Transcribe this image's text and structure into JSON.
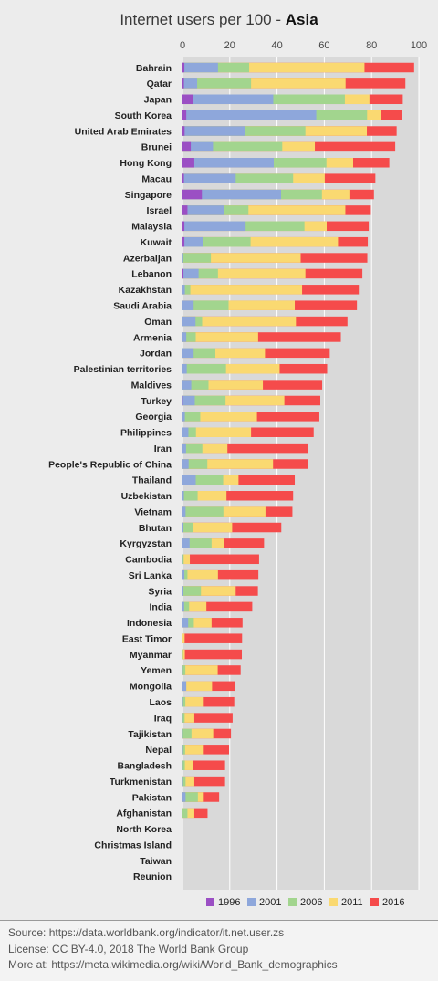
{
  "chart_data": {
    "type": "bar",
    "stacked_overlay": true,
    "title_prefix": "Internet users per 100 - ",
    "title_bold": "Asia",
    "xlim": [
      0,
      100
    ],
    "x_ticks": [
      0,
      20,
      40,
      60,
      80,
      100
    ],
    "grid": true,
    "legend_position": "bottom",
    "categories": [
      "Bahrain",
      "Qatar",
      "Japan",
      "South Korea",
      "United Arab Emirates",
      "Brunei",
      "Hong Kong",
      "Macau",
      "Singapore",
      "Israel",
      "Malaysia",
      "Kuwait",
      "Azerbaijan",
      "Lebanon",
      "Kazakhstan",
      "Saudi Arabia",
      "Oman",
      "Armenia",
      "Jordan",
      "Palestinian territories",
      "Maldives",
      "Turkey",
      "Georgia",
      "Philippines",
      "Iran",
      "People's Republic of China",
      "Thailand",
      "Uzbekistan",
      "Vietnam",
      "Bhutan",
      "Kyrgyzstan",
      "Cambodia",
      "Sri Lanka",
      "Syria",
      "India",
      "Indonesia",
      "East Timor",
      "Myanmar",
      "Yemen",
      "Mongolia",
      "Laos",
      "Iraq",
      "Tajikistan",
      "Nepal",
      "Bangladesh",
      "Turkmenistan",
      "Pakistan",
      "Afghanistan",
      "North Korea",
      "Christmas Island",
      "Taiwan",
      "Reunion"
    ],
    "series": [
      {
        "name": "1996",
        "color": "#9b4fc4",
        "values": [
          0.8,
          0.6,
          4.4,
          1.6,
          0.9,
          3.5,
          5.0,
          0.6,
          8.2,
          2.1,
          0.8,
          0.8,
          0.0,
          0.4,
          0.0,
          0.0,
          0.0,
          0.0,
          0.0,
          0.0,
          0.0,
          0.1,
          0.0,
          0.0,
          0.0,
          0.0,
          0.0,
          0.0,
          0.0,
          0.0,
          0.0,
          0.0,
          0.0,
          0.0,
          0.0,
          0.0,
          0.0,
          0.0,
          0.0,
          0.0,
          0.0,
          0.0,
          0.0,
          0.0,
          0.0,
          0.0,
          0.0,
          0.0,
          0.0,
          0.0,
          0.0,
          0.0
        ]
      },
      {
        "name": "2001",
        "color": "#8ea7db",
        "values": [
          15.0,
          6.2,
          38.4,
          56.6,
          26.3,
          12.9,
          38.6,
          22.5,
          41.7,
          17.6,
          26.7,
          8.5,
          0.3,
          6.8,
          1.0,
          4.7,
          5.5,
          1.6,
          4.7,
          1.8,
          3.7,
          5.2,
          1.0,
          2.5,
          1.5,
          2.6,
          5.6,
          0.6,
          1.3,
          0.4,
          3.0,
          0.1,
          0.8,
          0.4,
          0.7,
          2.4,
          0.0,
          0.0,
          0.1,
          1.6,
          0.2,
          0.1,
          0.1,
          0.2,
          0.1,
          0.2,
          1.3,
          0.0,
          0.0,
          0.0,
          0.0,
          0.0
        ]
      },
      {
        "name": "2006",
        "color": "#a2d58e",
        "values": [
          28.2,
          29.0,
          68.7,
          78.1,
          52.0,
          42.2,
          60.9,
          46.8,
          59.0,
          27.9,
          51.6,
          28.8,
          12.0,
          15.0,
          3.3,
          19.5,
          8.3,
          5.6,
          13.9,
          18.4,
          11.0,
          18.2,
          7.5,
          5.7,
          8.4,
          10.5,
          17.2,
          6.4,
          17.3,
          4.5,
          12.3,
          0.5,
          2.1,
          7.8,
          2.8,
          4.8,
          0.0,
          0.2,
          1.2,
          1.1,
          1.2,
          0.9,
          3.8,
          1.1,
          1.0,
          1.3,
          6.5,
          2.1,
          0.0,
          0.0,
          0.0,
          0.0
        ]
      },
      {
        "name": "2011",
        "color": "#fad971",
        "values": [
          77.0,
          69.0,
          79.1,
          83.8,
          78.0,
          56.0,
          72.2,
          60.2,
          71.0,
          68.9,
          61.0,
          65.8,
          50.0,
          52.0,
          50.6,
          47.5,
          48.0,
          32.0,
          34.9,
          41.1,
          34.0,
          43.1,
          31.5,
          29.0,
          19.0,
          38.3,
          23.7,
          18.6,
          35.1,
          21.0,
          17.5,
          3.1,
          15.0,
          22.5,
          10.1,
          12.3,
          0.9,
          1.0,
          14.9,
          12.5,
          9.0,
          5.0,
          13.0,
          9.0,
          4.5,
          5.0,
          9.0,
          5.0,
          0.0,
          0.0,
          0.0,
          0.0
        ]
      },
      {
        "name": "2016",
        "color": "#f54b4b",
        "values": [
          98.0,
          94.3,
          93.2,
          92.8,
          90.6,
          90.0,
          87.5,
          81.6,
          81.0,
          79.7,
          78.8,
          78.4,
          78.2,
          76.1,
          74.6,
          73.8,
          69.8,
          67.0,
          62.3,
          61.2,
          59.1,
          58.3,
          57.9,
          55.5,
          53.2,
          53.2,
          47.5,
          46.8,
          46.5,
          41.8,
          34.5,
          32.4,
          32.1,
          31.9,
          29.5,
          25.4,
          25.2,
          25.1,
          24.6,
          22.3,
          21.9,
          21.2,
          20.5,
          19.7,
          18.0,
          18.0,
          15.5,
          10.6,
          0.0,
          0.0,
          0.0,
          0.0
        ]
      }
    ]
  },
  "footer": {
    "source": "Source: https://data.worldbank.org/indicator/it.net.user.zs",
    "license": "License: CC BY-4.0,  2018  The World Bank Group",
    "more": "More at: https://meta.wikimedia.org/wiki/World_Bank_demographics"
  }
}
